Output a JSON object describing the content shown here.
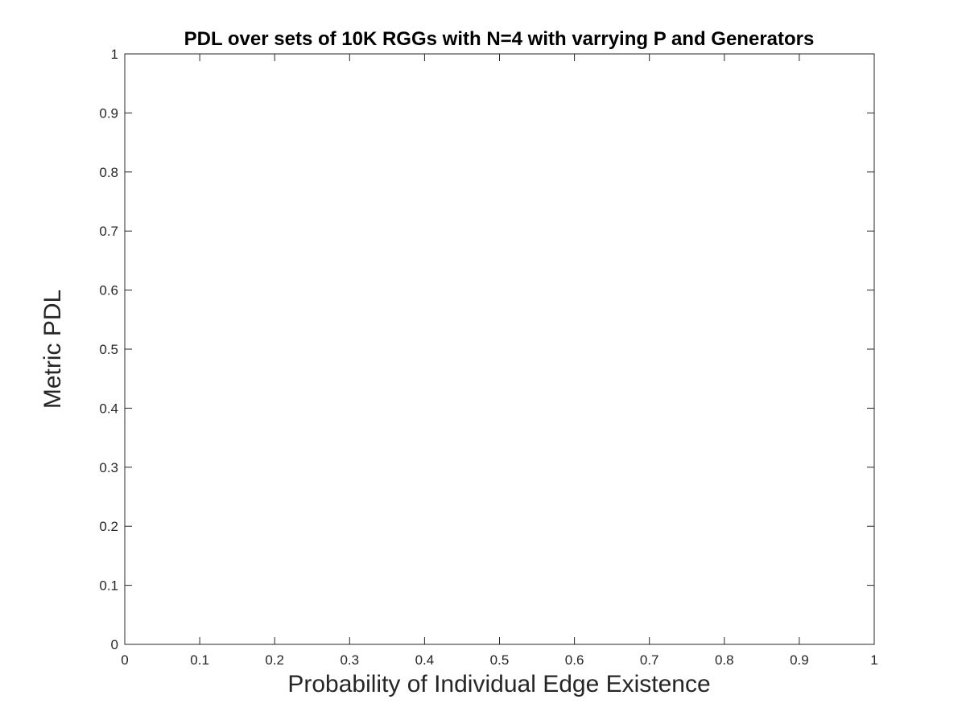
{
  "chart_data": {
    "type": "line",
    "title": "PDL over sets of 10K RGGs with N=4 with varrying P and Generators",
    "xlabel": "Probability of Individual Edge Existence",
    "ylabel": "Metric PDL",
    "xlim": [
      0,
      1
    ],
    "ylim": [
      0,
      1
    ],
    "x_ticks": [
      0,
      0.1,
      0.2,
      0.3,
      0.4,
      0.5,
      0.6,
      0.7,
      0.8,
      0.9,
      1
    ],
    "y_ticks": [
      0,
      0.1,
      0.2,
      0.3,
      0.4,
      0.5,
      0.6,
      0.7,
      0.8,
      0.9,
      1
    ],
    "x_tick_labels": [
      "0",
      "0.1",
      "0.2",
      "0.3",
      "0.4",
      "0.5",
      "0.6",
      "0.7",
      "0.8",
      "0.9",
      "1"
    ],
    "y_tick_labels": [
      "0",
      "0.1",
      "0.2",
      "0.3",
      "0.4",
      "0.5",
      "0.6",
      "0.7",
      "0.8",
      "0.9",
      "1"
    ],
    "series": [],
    "grid": false,
    "box": true,
    "colors": {
      "axis": "#262626",
      "background": "#ffffff",
      "title": "#000000"
    }
  }
}
